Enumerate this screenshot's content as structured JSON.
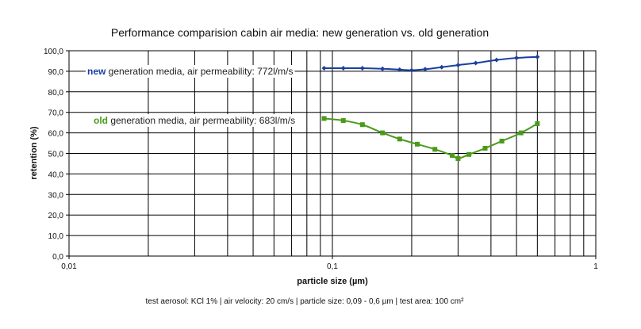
{
  "chart_data": {
    "type": "line",
    "title": "Performance comparision cabin air media:  new generation  vs.  old  generation",
    "xlabel": "particle size (µm)",
    "ylabel": "retention (%)",
    "x_scale": "log",
    "xlim": [
      0.01,
      1
    ],
    "ylim": [
      0,
      100
    ],
    "x_tick_labels": [
      "0,01",
      "0,1",
      "1"
    ],
    "y_tick_labels": [
      "0,0",
      "10,0",
      "20,0",
      "30,0",
      "40,0",
      "50,0",
      "60,0",
      "70,0",
      "80,0",
      "90,0",
      "100,0"
    ],
    "grid": true,
    "series": [
      {
        "label_bold": "new",
        "label_rest": " generation media, air permeability: 772l/m/s",
        "color": "#1a3fa0",
        "marker": "diamond",
        "x": [
          0.093,
          0.11,
          0.13,
          0.155,
          0.18,
          0.2,
          0.225,
          0.26,
          0.3,
          0.35,
          0.42,
          0.5,
          0.6
        ],
        "y": [
          91.5,
          91.5,
          91.5,
          91.2,
          90.8,
          90.5,
          91.0,
          92.0,
          93.0,
          94.0,
          95.5,
          96.5,
          97.0
        ]
      },
      {
        "label_bold": "old",
        "label_rest": " generation media, air permeability: 683l/m/s",
        "color": "#4a9a1a",
        "marker": "square",
        "x": [
          0.093,
          0.11,
          0.13,
          0.155,
          0.18,
          0.21,
          0.245,
          0.285,
          0.3,
          0.33,
          0.38,
          0.44,
          0.52,
          0.6
        ],
        "y": [
          67.0,
          66.0,
          64.0,
          60.0,
          57.0,
          54.5,
          52.0,
          49.0,
          47.5,
          49.5,
          52.5,
          56.0,
          60.0,
          64.5
        ]
      }
    ]
  },
  "footnote": "test aerosol: KCl 1%   |   air velocity:  20 cm/s   |   particle size:  0,09 - 0,6 µm   |   test area: 100 cm²"
}
